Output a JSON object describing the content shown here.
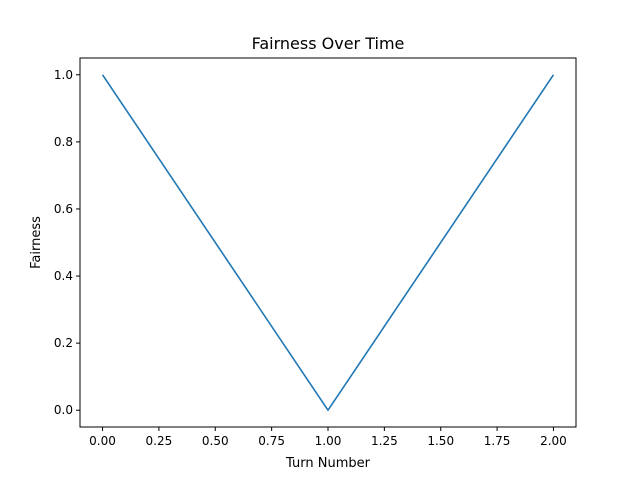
{
  "chart_data": {
    "type": "line",
    "title": "Fairness Over Time",
    "xlabel": "Turn Number",
    "ylabel": "Fairness",
    "xlim": [
      -0.1,
      2.1
    ],
    "ylim": [
      -0.05,
      1.05
    ],
    "x_ticks": [
      0.0,
      0.25,
      0.5,
      0.75,
      1.0,
      1.25,
      1.5,
      1.75,
      2.0
    ],
    "x_tick_labels": [
      "0.00",
      "0.25",
      "0.50",
      "0.75",
      "1.00",
      "1.25",
      "1.50",
      "1.75",
      "2.00"
    ],
    "y_ticks": [
      0.0,
      0.2,
      0.4,
      0.6,
      0.8,
      1.0
    ],
    "y_tick_labels": [
      "0.0",
      "0.2",
      "0.4",
      "0.6",
      "0.8",
      "1.0"
    ],
    "grid": false,
    "legend": "none",
    "series": [
      {
        "color": "#1f77b4",
        "x": [
          0,
          1,
          2
        ],
        "y": [
          1.0,
          0.0,
          1.0
        ]
      }
    ]
  }
}
